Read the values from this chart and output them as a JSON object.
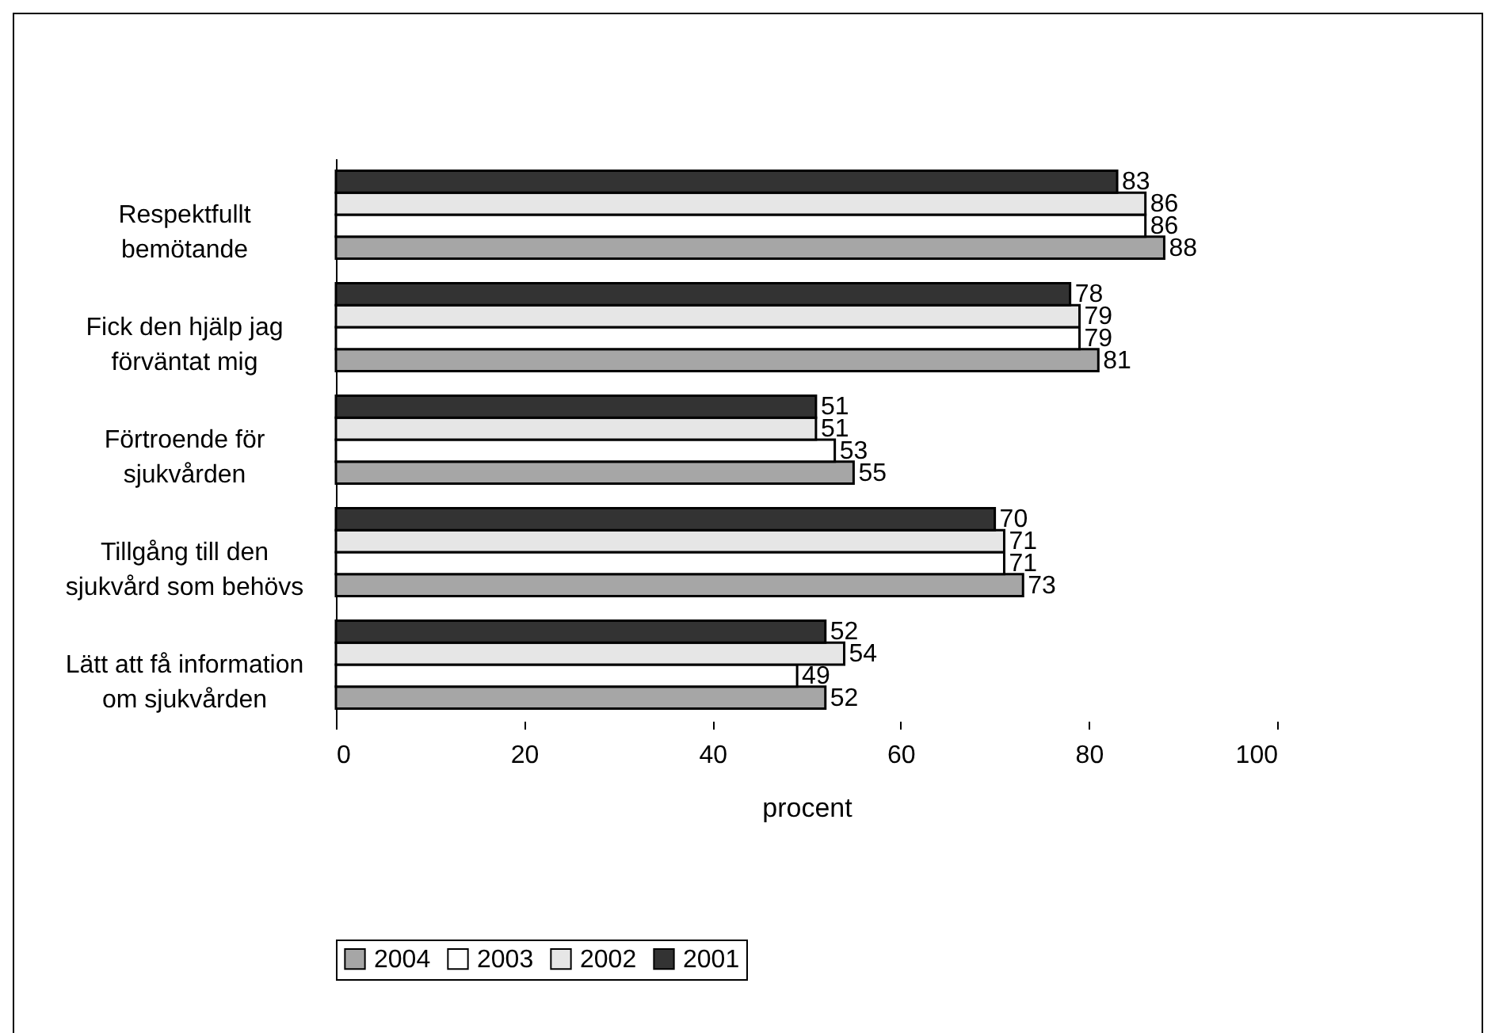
{
  "chart_data": {
    "type": "bar",
    "orientation": "horizontal",
    "xlabel": "procent",
    "categories": [
      "Respektfullt\nbemötande",
      "Fick den hjälp jag\nförväntat mig",
      "Förtroende för\nsjukvården",
      "Tillgång till den\nsjukvård som behövs",
      "Lätt att få information\nom sjukvården"
    ],
    "series": [
      {
        "name": "2004",
        "color": "#a6a6a6",
        "values": [
          88,
          81,
          55,
          73,
          52
        ]
      },
      {
        "name": "2003",
        "color": "#ffffff",
        "values": [
          86,
          79,
          53,
          71,
          49
        ]
      },
      {
        "name": "2002",
        "color": "#e6e6e6",
        "values": [
          86,
          79,
          51,
          71,
          54
        ]
      },
      {
        "name": "2001",
        "color": "#333333",
        "values": [
          83,
          78,
          51,
          70,
          52
        ]
      }
    ],
    "xlim": [
      0,
      100
    ],
    "xticks": [
      0,
      20,
      40,
      60,
      80,
      100
    ],
    "grid": false,
    "legend": "bottom",
    "data_labels": true
  }
}
